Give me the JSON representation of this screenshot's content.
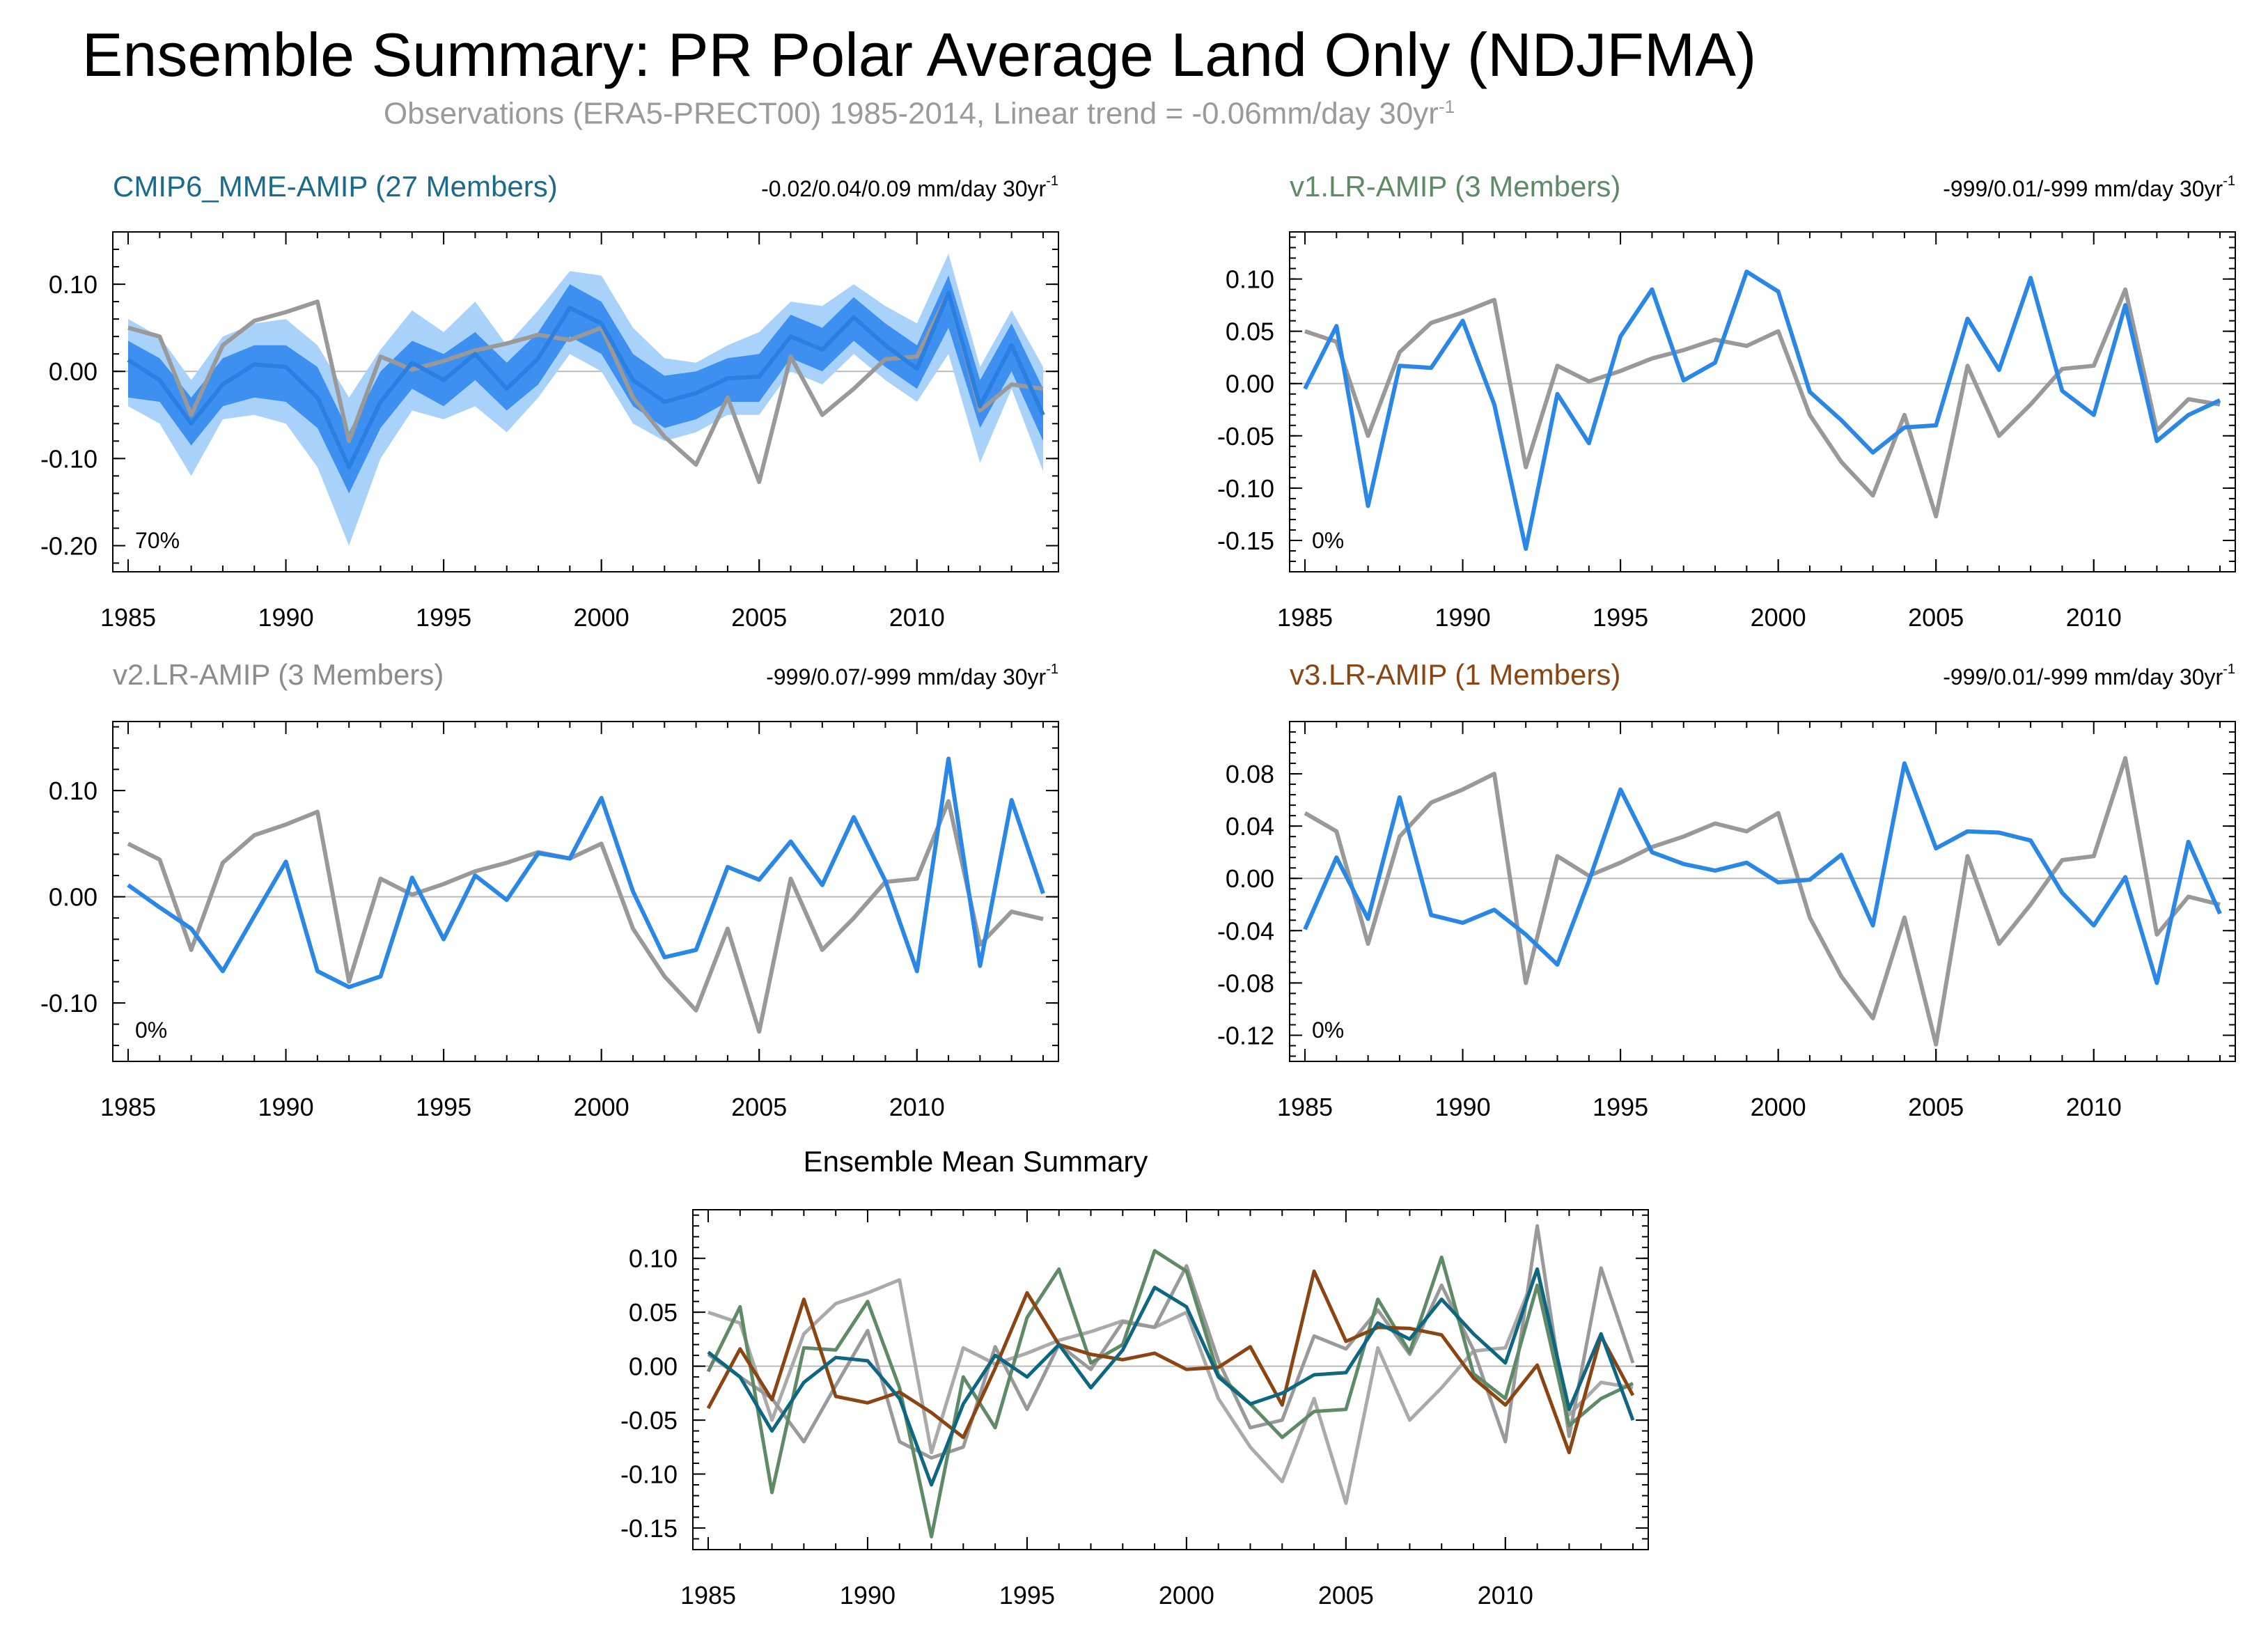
{
  "title": "Ensemble Summary: PR Polar Average Land Only (NDJFMA)",
  "subtitle_main": "Observations (ERA5-PRECT00) 1985-2014, Linear trend = -0.06mm/day 30yr",
  "subtitle_sup": "-1",
  "colors": {
    "obs": "#999999",
    "mme_line": "#2a7fe0",
    "mme_band_outer": "#a9d2fb",
    "mme_band_inner": "#3d90f0",
    "blue": "#2a87e6",
    "mme_title": "#1a6b8a",
    "v1_title": "#5f8a66",
    "v2_title": "#8c8c8c",
    "v3_title": "#8b4513",
    "sum_mme": "#0e6680",
    "sum_v1": "#5f8a66",
    "sum_v2": "#999999",
    "sum_v3": "#8b4513"
  },
  "chart_data": [
    {
      "type": "line",
      "title": "CMIP6_MME-AMIP (27 Members)",
      "trend_label": "-0.02/0.04/0.09 mm/day 30yr",
      "trend_sup": "-1",
      "percent_label": "70%",
      "x": [
        1985,
        1986,
        1987,
        1988,
        1989,
        1990,
        1991,
        1992,
        1993,
        1994,
        1995,
        1996,
        1997,
        1998,
        1999,
        2000,
        2001,
        2002,
        2003,
        2004,
        2005,
        2006,
        2007,
        2008,
        2009,
        2010,
        2011,
        2012,
        2013,
        2014
      ],
      "xticks": [
        1985,
        1990,
        1995,
        2000,
        2005,
        2010
      ],
      "ylim": [
        -0.23,
        0.16
      ],
      "yticks": [
        0.1,
        0.0,
        -0.1,
        -0.2
      ],
      "ytick_labels": [
        "0.10",
        "0.00",
        "-0.10",
        "-0.20"
      ],
      "observations": [
        0.05,
        0.04,
        -0.05,
        0.03,
        0.058,
        0.068,
        0.08,
        -0.08,
        0.017,
        0.002,
        0.012,
        0.024,
        0.032,
        0.042,
        0.036,
        0.05,
        -0.03,
        -0.075,
        -0.107,
        -0.03,
        -0.127,
        0.017,
        -0.05,
        -0.02,
        0.014,
        0.017,
        0.09,
        -0.045,
        -0.015,
        -0.02
      ],
      "ensemble_mean": [
        0.013,
        -0.01,
        -0.06,
        -0.015,
        0.008,
        0.005,
        -0.03,
        -0.11,
        -0.035,
        0.01,
        -0.01,
        0.02,
        -0.02,
        0.015,
        0.073,
        0.055,
        -0.01,
        -0.035,
        -0.025,
        -0.008,
        -0.006,
        0.04,
        0.025,
        0.062,
        0.03,
        0.003,
        0.09,
        -0.04,
        0.03,
        -0.05
      ],
      "band_inner_low": [
        -0.03,
        -0.035,
        -0.085,
        -0.04,
        -0.03,
        -0.035,
        -0.065,
        -0.14,
        -0.065,
        -0.02,
        -0.04,
        -0.01,
        -0.045,
        -0.015,
        0.04,
        0.02,
        -0.04,
        -0.065,
        -0.055,
        -0.035,
        -0.035,
        0.015,
        0.0,
        0.035,
        0.005,
        -0.02,
        0.05,
        -0.065,
        0.0,
        -0.08
      ],
      "band_inner_high": [
        0.035,
        0.015,
        -0.03,
        0.015,
        0.03,
        0.03,
        0.005,
        -0.07,
        0.0,
        0.035,
        0.02,
        0.045,
        0.01,
        0.045,
        0.1,
        0.08,
        0.02,
        -0.005,
        0.0,
        0.015,
        0.02,
        0.065,
        0.05,
        0.085,
        0.055,
        0.03,
        0.11,
        -0.01,
        0.055,
        -0.02
      ],
      "band_outer_low": [
        -0.04,
        -0.06,
        -0.12,
        -0.055,
        -0.05,
        -0.06,
        -0.11,
        -0.2,
        -0.1,
        -0.045,
        -0.055,
        -0.04,
        -0.07,
        -0.03,
        0.02,
        0.0,
        -0.06,
        -0.08,
        -0.07,
        -0.05,
        -0.05,
        0.0,
        -0.015,
        0.02,
        -0.01,
        -0.035,
        0.02,
        -0.105,
        -0.02,
        -0.115
      ],
      "band_outer_high": [
        0.06,
        0.04,
        -0.01,
        0.04,
        0.055,
        0.06,
        0.03,
        -0.03,
        0.025,
        0.07,
        0.045,
        0.08,
        0.03,
        0.07,
        0.115,
        0.11,
        0.05,
        0.015,
        0.01,
        0.03,
        0.045,
        0.08,
        0.075,
        0.1,
        0.075,
        0.055,
        0.135,
        0.005,
        0.07,
        0.005
      ]
    },
    {
      "type": "line",
      "title": "v1.LR-AMIP (3 Members)",
      "trend_label": "-999/0.01/-999 mm/day 30yr",
      "trend_sup": "-1",
      "percent_label": "0%",
      "x": [
        1985,
        1986,
        1987,
        1988,
        1989,
        1990,
        1991,
        1992,
        1993,
        1994,
        1995,
        1996,
        1997,
        1998,
        1999,
        2000,
        2001,
        2002,
        2003,
        2004,
        2005,
        2006,
        2007,
        2008,
        2009,
        2010,
        2011,
        2012,
        2013,
        2014
      ],
      "xticks": [
        1985,
        1990,
        1995,
        2000,
        2005,
        2010
      ],
      "ylim": [
        -0.18,
        0.145
      ],
      "yticks": [
        0.1,
        0.05,
        0.0,
        -0.05,
        -0.1,
        -0.15
      ],
      "ytick_labels": [
        "0.10",
        "0.05",
        "0.00",
        "-0.05",
        "-0.10",
        "-0.15"
      ],
      "observations": [
        0.05,
        0.04,
        -0.05,
        0.03,
        0.058,
        0.068,
        0.08,
        -0.08,
        0.017,
        0.002,
        0.012,
        0.024,
        0.032,
        0.042,
        0.036,
        0.05,
        -0.03,
        -0.075,
        -0.107,
        -0.03,
        -0.127,
        0.017,
        -0.05,
        -0.02,
        0.014,
        0.017,
        0.09,
        -0.045,
        -0.015,
        -0.02
      ],
      "model": [
        -0.005,
        0.055,
        -0.117,
        0.017,
        0.015,
        0.06,
        -0.02,
        -0.158,
        -0.01,
        -0.057,
        0.045,
        0.09,
        0.003,
        0.02,
        0.107,
        0.088,
        -0.008,
        -0.035,
        -0.066,
        -0.042,
        -0.04,
        0.062,
        0.013,
        0.101,
        -0.007,
        -0.03,
        0.075,
        -0.055,
        -0.03,
        -0.016
      ]
    },
    {
      "type": "line",
      "title": "v2.LR-AMIP (3 Members)",
      "trend_label": "-999/0.07/-999 mm/day 30yr",
      "trend_sup": "-1",
      "percent_label": "0%",
      "x": [
        1985,
        1986,
        1987,
        1988,
        1989,
        1990,
        1991,
        1992,
        1993,
        1994,
        1995,
        1996,
        1997,
        1998,
        1999,
        2000,
        2001,
        2002,
        2003,
        2004,
        2005,
        2006,
        2007,
        2008,
        2009,
        2010,
        2011,
        2012,
        2013,
        2014
      ],
      "xticks": [
        1985,
        1990,
        1995,
        2000,
        2005,
        2010
      ],
      "ylim": [
        -0.155,
        0.165
      ],
      "yticks": [
        0.1,
        0.0,
        -0.1
      ],
      "ytick_labels": [
        "0.10",
        "0.00",
        "-0.10"
      ],
      "observations": [
        0.05,
        0.035,
        -0.05,
        0.032,
        0.058,
        0.068,
        0.08,
        -0.08,
        0.017,
        0.002,
        0.012,
        0.024,
        0.032,
        0.042,
        0.036,
        0.05,
        -0.03,
        -0.075,
        -0.107,
        -0.03,
        -0.127,
        0.017,
        -0.05,
        -0.02,
        0.014,
        0.017,
        0.09,
        -0.045,
        -0.014,
        -0.021
      ],
      "model": [
        0.011,
        -0.01,
        -0.03,
        -0.07,
        -0.018,
        0.033,
        -0.07,
        -0.085,
        -0.075,
        0.018,
        -0.04,
        0.02,
        -0.003,
        0.041,
        0.036,
        0.093,
        0.005,
        -0.057,
        -0.05,
        0.028,
        0.016,
        0.052,
        0.011,
        0.075,
        0.015,
        -0.07,
        0.13,
        -0.065,
        0.091,
        0.003
      ]
    },
    {
      "type": "line",
      "title": "v3.LR-AMIP (1 Members)",
      "trend_label": "-999/0.01/-999 mm/day 30yr",
      "trend_sup": "-1",
      "percent_label": "0%",
      "x": [
        1985,
        1986,
        1987,
        1988,
        1989,
        1990,
        1991,
        1992,
        1993,
        1994,
        1995,
        1996,
        1997,
        1998,
        1999,
        2000,
        2001,
        2002,
        2003,
        2004,
        2005,
        2006,
        2007,
        2008,
        2009,
        2010,
        2011,
        2012,
        2013,
        2014
      ],
      "xticks": [
        1985,
        1990,
        1995,
        2000,
        2005,
        2010
      ],
      "ylim": [
        -0.14,
        0.12
      ],
      "yticks": [
        0.08,
        0.04,
        0.0,
        -0.04,
        -0.08,
        -0.12
      ],
      "ytick_labels": [
        "0.08",
        "0.04",
        "0.00",
        "-0.04",
        "-0.08",
        "-0.12"
      ],
      "observations": [
        0.05,
        0.036,
        -0.05,
        0.032,
        0.058,
        0.068,
        0.08,
        -0.08,
        0.017,
        0.002,
        0.012,
        0.024,
        0.032,
        0.042,
        0.036,
        0.05,
        -0.03,
        -0.075,
        -0.107,
        -0.03,
        -0.127,
        0.017,
        -0.05,
        -0.02,
        0.014,
        0.017,
        0.092,
        -0.043,
        -0.014,
        -0.02
      ],
      "model": [
        -0.039,
        0.016,
        -0.031,
        0.062,
        -0.028,
        -0.034,
        -0.024,
        -0.043,
        -0.066,
        -0.002,
        0.068,
        0.02,
        0.011,
        0.006,
        0.012,
        -0.003,
        -0.001,
        0.018,
        -0.036,
        0.088,
        0.023,
        0.036,
        0.035,
        0.029,
        -0.011,
        -0.036,
        0.001,
        -0.08,
        0.028,
        -0.027
      ]
    },
    {
      "type": "line",
      "title": "Ensemble Mean Summary",
      "x": [
        1985,
        1986,
        1987,
        1988,
        1989,
        1990,
        1991,
        1992,
        1993,
        1994,
        1995,
        1996,
        1997,
        1998,
        1999,
        2000,
        2001,
        2002,
        2003,
        2004,
        2005,
        2006,
        2007,
        2008,
        2009,
        2010,
        2011,
        2012,
        2013,
        2014
      ],
      "xticks": [
        1985,
        1990,
        1995,
        2000,
        2005,
        2010
      ],
      "ylim": [
        -0.17,
        0.145
      ],
      "yticks": [
        0.1,
        0.05,
        0.0,
        -0.05,
        -0.1,
        -0.15
      ],
      "ytick_labels": [
        "0.10",
        "0.05",
        "0.00",
        "-0.05",
        "-0.10",
        "-0.15"
      ],
      "observations": [
        0.05,
        0.04,
        -0.05,
        0.03,
        0.058,
        0.068,
        0.08,
        -0.08,
        0.017,
        0.002,
        0.012,
        0.024,
        0.032,
        0.042,
        0.036,
        0.05,
        -0.03,
        -0.075,
        -0.107,
        -0.03,
        -0.127,
        0.017,
        -0.05,
        -0.02,
        0.014,
        0.017,
        0.09,
        -0.045,
        -0.015,
        -0.02
      ],
      "series": [
        {
          "name": "CMIP6_MME-AMIP",
          "values": [
            0.013,
            -0.01,
            -0.06,
            -0.015,
            0.008,
            0.005,
            -0.03,
            -0.11,
            -0.035,
            0.01,
            -0.01,
            0.02,
            -0.02,
            0.015,
            0.073,
            0.055,
            -0.01,
            -0.035,
            -0.025,
            -0.008,
            -0.006,
            0.04,
            0.025,
            0.062,
            0.03,
            0.003,
            0.09,
            -0.04,
            0.03,
            -0.05
          ]
        },
        {
          "name": "v1.LR-AMIP",
          "values": [
            -0.005,
            0.055,
            -0.117,
            0.017,
            0.015,
            0.06,
            -0.02,
            -0.158,
            -0.01,
            -0.057,
            0.045,
            0.09,
            0.003,
            0.02,
            0.107,
            0.088,
            -0.008,
            -0.035,
            -0.066,
            -0.042,
            -0.04,
            0.062,
            0.013,
            0.101,
            -0.007,
            -0.03,
            0.075,
            -0.055,
            -0.03,
            -0.016
          ]
        },
        {
          "name": "v2.LR-AMIP",
          "values": [
            0.011,
            -0.01,
            -0.03,
            -0.07,
            -0.018,
            0.033,
            -0.07,
            -0.085,
            -0.075,
            0.018,
            -0.04,
            0.02,
            -0.003,
            0.041,
            0.036,
            0.093,
            0.005,
            -0.057,
            -0.05,
            0.028,
            0.016,
            0.052,
            0.011,
            0.075,
            0.015,
            -0.07,
            0.13,
            -0.065,
            0.091,
            0.003
          ]
        },
        {
          "name": "v3.LR-AMIP",
          "values": [
            -0.039,
            0.016,
            -0.031,
            0.062,
            -0.028,
            -0.034,
            -0.024,
            -0.043,
            -0.066,
            -0.002,
            0.068,
            0.02,
            0.011,
            0.006,
            0.012,
            -0.003,
            -0.001,
            0.018,
            -0.036,
            0.088,
            0.023,
            0.036,
            0.035,
            0.029,
            -0.011,
            -0.036,
            0.001,
            -0.08,
            0.028,
            -0.027
          ]
        }
      ]
    }
  ]
}
